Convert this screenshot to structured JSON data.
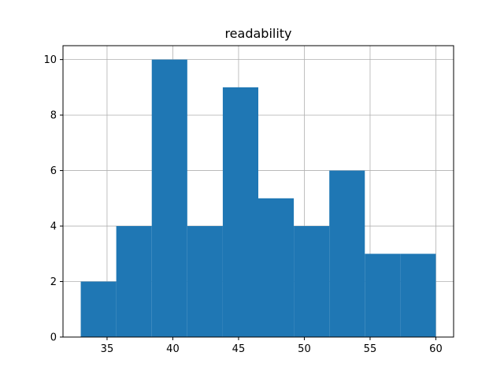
{
  "chart_data": {
    "type": "bar",
    "title": "readability",
    "xlabel": "",
    "ylabel": "",
    "bin_edges": [
      33,
      35.7,
      38.4,
      41.1,
      43.8,
      46.5,
      49.2,
      51.9,
      54.6,
      57.3,
      60
    ],
    "values": [
      2,
      4,
      10,
      4,
      9,
      5,
      4,
      6,
      3,
      3
    ],
    "xlim": [
      31.65,
      61.35
    ],
    "ylim": [
      0,
      10.5
    ],
    "xticks": [
      35,
      40,
      45,
      50,
      55,
      60
    ],
    "yticks": [
      0,
      2,
      4,
      6,
      8,
      10
    ],
    "grid": true,
    "bar_color": "#1f77b4",
    "grid_color": "#b0b0b0"
  }
}
